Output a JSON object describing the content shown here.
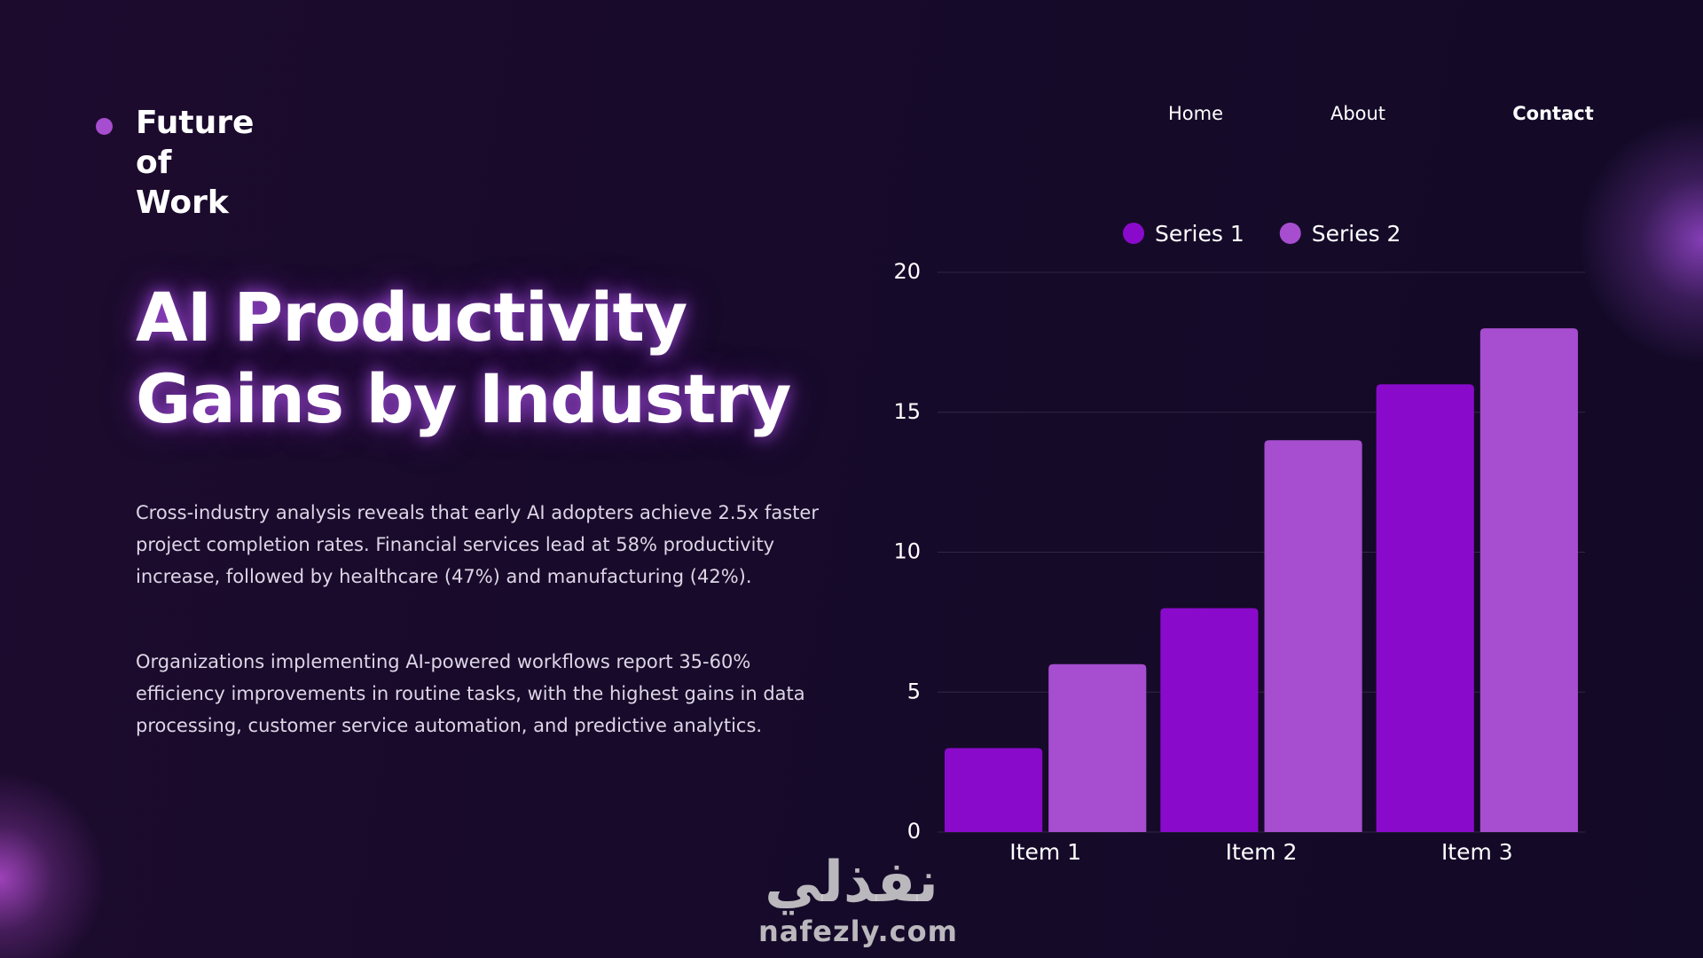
{
  "header": {
    "brand": "Future of Work",
    "nav": [
      "Home",
      "About",
      "Contact"
    ]
  },
  "title": "AI Productivity Gains by Industry",
  "paragraphs": [
    "Cross-industry analysis reveals that early AI adopters achieve 2.5x faster project completion rates. Financial services lead at 58% productivity increase, followed by healthcare (47%) and manufacturing (42%).",
    "Organizations implementing AI-powered workflows report 35-60% efficiency improvements in routine tasks, with the highest gains in data processing, customer service automation, and predictive analytics."
  ],
  "watermark": {
    "arabic": "نفذلي",
    "latin": "nafezly.com"
  },
  "chart_data": {
    "type": "bar",
    "categories": [
      "Item 1",
      "Item 2",
      "Item 3"
    ],
    "series": [
      {
        "name": "Series 1",
        "color": "#8a0acb",
        "values": [
          3,
          8,
          16
        ]
      },
      {
        "name": "Series 2",
        "color": "#a64dd0",
        "values": [
          6,
          14,
          18
        ]
      }
    ],
    "ylim": [
      0,
      20
    ],
    "yticks": [
      0,
      5,
      10,
      15,
      20
    ],
    "grid": true,
    "legend": "top"
  }
}
